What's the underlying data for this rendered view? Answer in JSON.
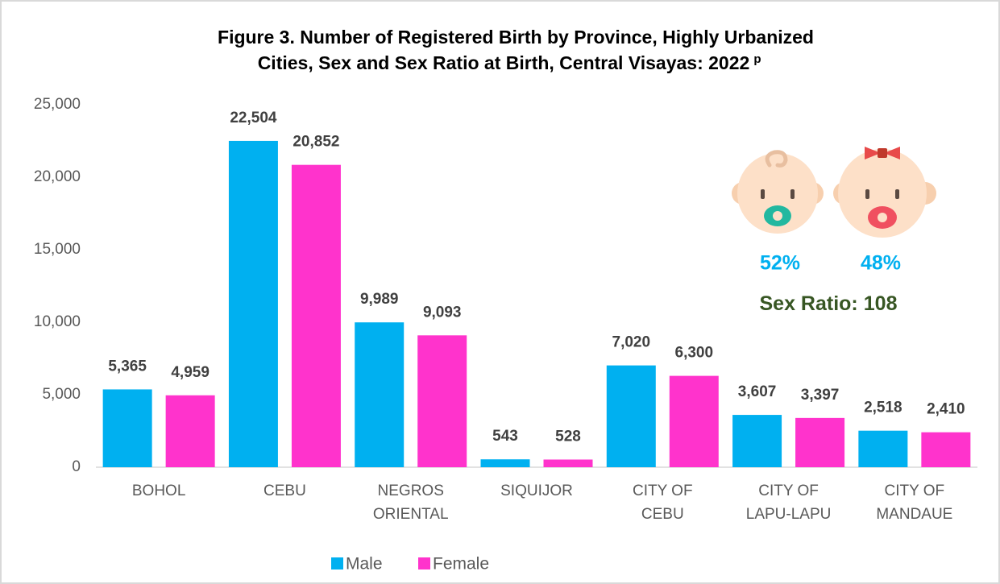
{
  "chart_data": {
    "type": "bar",
    "title": [
      "Figure 3. Number of Registered Birth by Province, Highly Urbanized",
      "Cities, Sex and Sex Ratio at Birth, Central Visayas: 2022"
    ],
    "title_superscript": "p",
    "categories": [
      [
        "BOHOL"
      ],
      [
        "CEBU"
      ],
      [
        "NEGROS",
        "ORIENTAL"
      ],
      [
        "SIQUIJOR"
      ],
      [
        "CITY OF",
        "CEBU"
      ],
      [
        "CITY OF",
        "LAPU-LAPU"
      ],
      [
        "CITY OF",
        "MANDAUE"
      ]
    ],
    "series": [
      {
        "name": "Male",
        "color": "#00b0f0",
        "values": [
          5365,
          22504,
          9989,
          543,
          7020,
          3607,
          2518
        ],
        "value_labels": [
          "5,365",
          "22,504",
          "9,989",
          "543",
          "7,020",
          "3,607",
          "2,518"
        ]
      },
      {
        "name": "Female",
        "color": "#ff33cc",
        "values": [
          4959,
          20852,
          9093,
          528,
          6300,
          3397,
          2410
        ],
        "value_labels": [
          "4,959",
          "20,852",
          "9,093",
          "528",
          "6,300",
          "3,397",
          "2,410"
        ]
      }
    ],
    "ylim": [
      0,
      25000
    ],
    "yticks": [
      0,
      {
        "value": 5000,
        "label": "5,000"
      },
      {
        "value": 10000,
        "label": "10,000"
      },
      {
        "value": 15000,
        "label": "15,000"
      },
      {
        "value": 20000,
        "label": "20,000"
      },
      {
        "value": 25000,
        "label": "25,000"
      }
    ],
    "grid": false,
    "legend": "bottom",
    "annotations": {
      "male_share": "52%",
      "female_share": "48%",
      "sex_ratio_label": "Sex Ratio:",
      "sex_ratio_value": "108"
    }
  }
}
